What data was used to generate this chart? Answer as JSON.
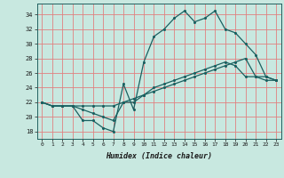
{
  "title": "",
  "xlabel": "Humidex (Indice chaleur)",
  "ylabel": "",
  "background_color": "#c8e8e0",
  "grid_color": "#e08080",
  "line_color": "#1a6060",
  "xlim": [
    -0.5,
    23.5
  ],
  "ylim": [
    17,
    35.5
  ],
  "yticks": [
    18,
    20,
    22,
    24,
    26,
    28,
    30,
    32,
    34
  ],
  "xticks": [
    0,
    1,
    2,
    3,
    4,
    5,
    6,
    7,
    8,
    9,
    10,
    11,
    12,
    13,
    14,
    15,
    16,
    17,
    18,
    19,
    20,
    21,
    22,
    23
  ],
  "hours": [
    0,
    1,
    2,
    3,
    4,
    5,
    6,
    7,
    8,
    9,
    10,
    11,
    12,
    13,
    14,
    15,
    16,
    17,
    18,
    19,
    20,
    21,
    22,
    23
  ],
  "line1": [
    22,
    21.5,
    21.5,
    21.5,
    19.5,
    19.5,
    18.5,
    18.0,
    24.5,
    21,
    27.5,
    31,
    32,
    33.5,
    34.5,
    33,
    33.5,
    34.5,
    32,
    31.5,
    30,
    28.5,
    25.5,
    25
  ],
  "line2": [
    22,
    21.5,
    21.5,
    21.5,
    21.5,
    21.5,
    21.5,
    21.5,
    22,
    22.5,
    23,
    23.5,
    24,
    24.5,
    25,
    25.5,
    26,
    26.5,
    27,
    27.5,
    28,
    25.5,
    25,
    25
  ],
  "line3": [
    22,
    21.5,
    21.5,
    21.5,
    21,
    20.5,
    20,
    19.5,
    22,
    22,
    23,
    24,
    24.5,
    25,
    25.5,
    26,
    26.5,
    27,
    27.5,
    27,
    25.5,
    25.5,
    25.5,
    25
  ]
}
